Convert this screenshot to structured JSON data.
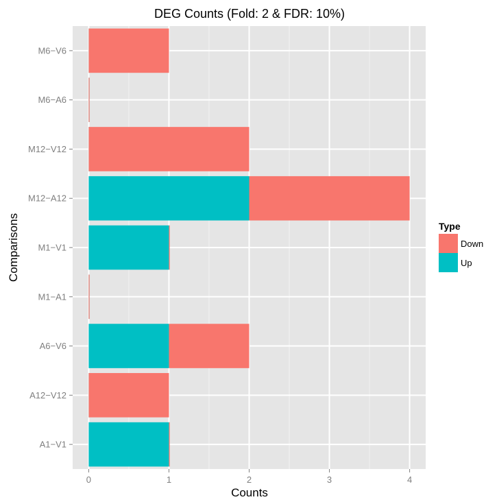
{
  "chart_data": {
    "type": "bar",
    "orientation": "horizontal",
    "stacked": true,
    "title": "DEG Counts (Fold: 2 & FDR: 10%)",
    "xlabel": "Counts",
    "ylabel": "Comparisons",
    "categories": [
      "A1−V1",
      "A12−V12",
      "A6−V6",
      "M1−A1",
      "M1−V1",
      "M12−A12",
      "M12−V12",
      "M6−A6",
      "M6−V6"
    ],
    "series": [
      {
        "name": "Up",
        "color": "#00BFC4",
        "values": [
          1,
          0,
          1,
          0,
          1,
          2,
          0,
          0,
          0
        ]
      },
      {
        "name": "Down",
        "color": "#F8766D",
        "values": [
          0,
          1,
          1,
          0,
          0,
          2,
          2,
          0,
          1
        ]
      }
    ],
    "xlim": [
      -0.2,
      4.2
    ],
    "xticks": [
      "0",
      "1",
      "2",
      "3",
      "4"
    ],
    "grid": true,
    "legend": {
      "title": "Type",
      "position": "right",
      "items": [
        "Down",
        "Up"
      ]
    },
    "colors": {
      "panel": "#E5E5E5",
      "grid": "#FFFFFF",
      "axis_text": "#7F7F7F"
    }
  }
}
